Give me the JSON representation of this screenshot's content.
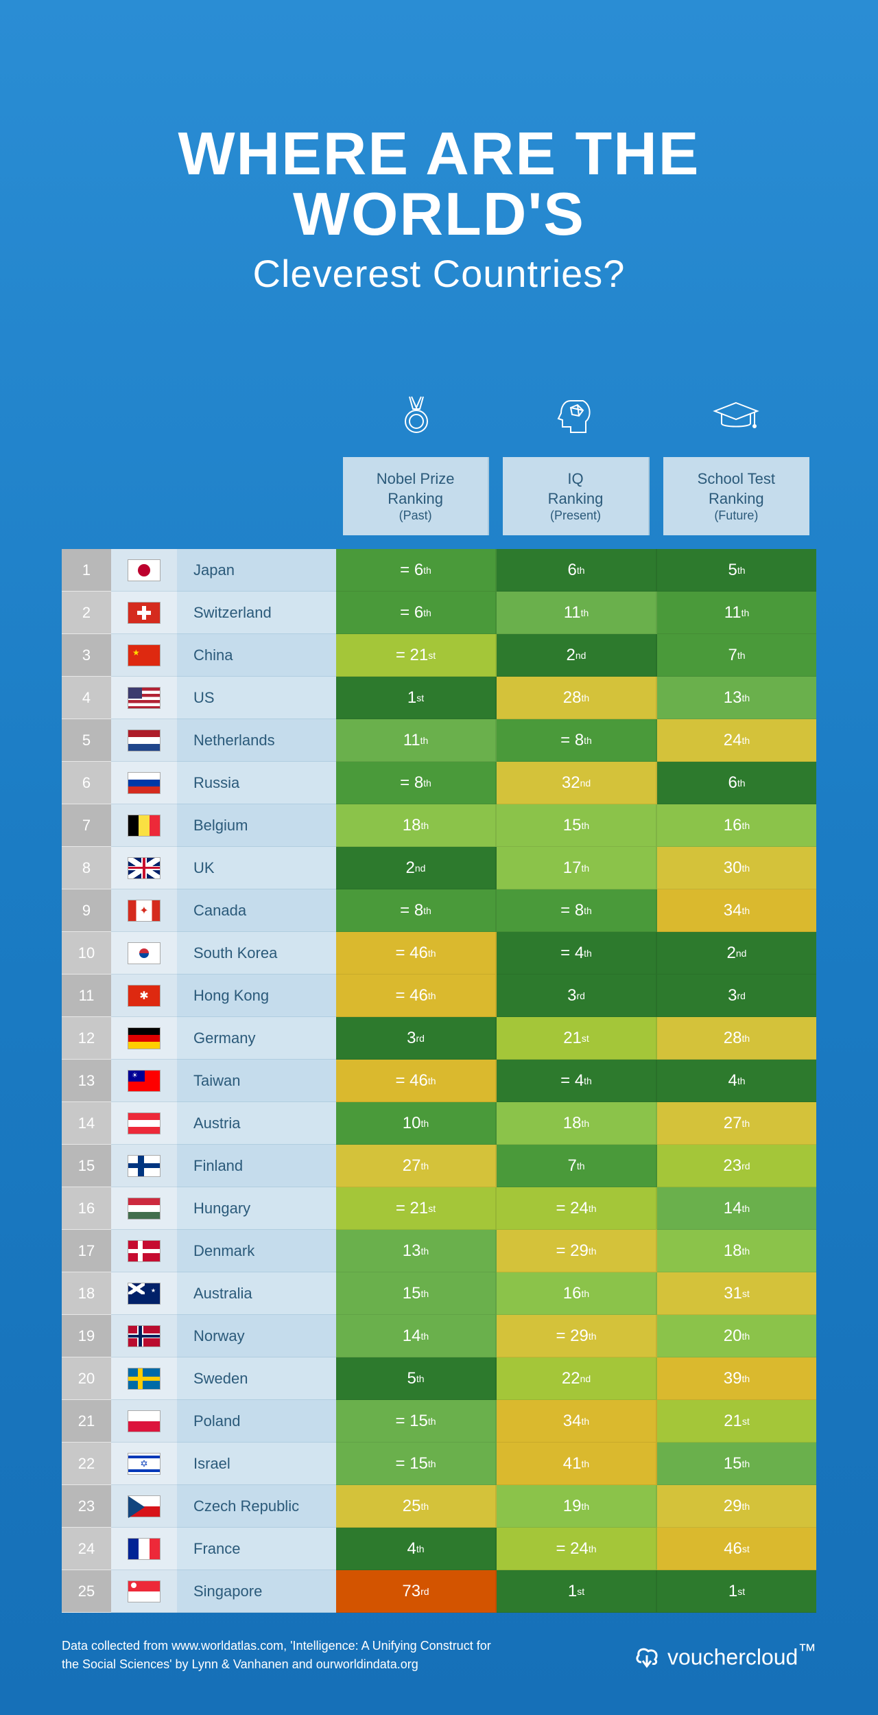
{
  "title_line1": "WHERE ARE THE WORLD'S",
  "title_line2": "Cleverest Countries?",
  "columns": [
    {
      "label": "Nobel Prize\nRanking",
      "sub": "(Past)",
      "icon": "medal"
    },
    {
      "label": "IQ\nRanking",
      "sub": "(Present)",
      "icon": "head"
    },
    {
      "label": "School Test\nRanking",
      "sub": "(Future)",
      "icon": "grad-cap"
    }
  ],
  "color_scale": {
    "dark_green": "#2d7a2d",
    "green": "#4a9a3a",
    "mid_green": "#6ab04c",
    "lime": "#8bc34a",
    "yellow_green": "#a4c639",
    "yellow": "#d4c23a",
    "mustard": "#dab92e",
    "orange": "#e67e22",
    "red_orange": "#d35400"
  },
  "rows": [
    {
      "rank": 1,
      "country": "Japan",
      "flag": "JP",
      "cells": [
        {
          "text": "= 6",
          "sup": "th",
          "bg": "#4a9a3a"
        },
        {
          "text": "6",
          "sup": "th",
          "bg": "#2d7a2d"
        },
        {
          "text": "5",
          "sup": "th",
          "bg": "#2d7a2d"
        }
      ]
    },
    {
      "rank": 2,
      "country": "Switzerland",
      "flag": "CH",
      "cells": [
        {
          "text": "= 6",
          "sup": "th",
          "bg": "#4a9a3a"
        },
        {
          "text": "11",
          "sup": "th",
          "bg": "#6ab04c"
        },
        {
          "text": "11",
          "sup": "th",
          "bg": "#4a9a3a"
        }
      ]
    },
    {
      "rank": 3,
      "country": "China",
      "flag": "CN",
      "cells": [
        {
          "text": "= 21",
          "sup": "st",
          "bg": "#a4c639"
        },
        {
          "text": "2",
          "sup": "nd",
          "bg": "#2d7a2d"
        },
        {
          "text": "7",
          "sup": "th",
          "bg": "#4a9a3a"
        }
      ]
    },
    {
      "rank": 4,
      "country": "US",
      "flag": "US",
      "cells": [
        {
          "text": "1",
          "sup": "st",
          "bg": "#2d7a2d"
        },
        {
          "text": "28",
          "sup": "th",
          "bg": "#d4c23a"
        },
        {
          "text": "13",
          "sup": "th",
          "bg": "#6ab04c"
        }
      ]
    },
    {
      "rank": 5,
      "country": "Netherlands",
      "flag": "NL",
      "cells": [
        {
          "text": "11",
          "sup": "th",
          "bg": "#6ab04c"
        },
        {
          "text": "= 8",
          "sup": "th",
          "bg": "#4a9a3a"
        },
        {
          "text": "24",
          "sup": "th",
          "bg": "#d4c23a"
        }
      ]
    },
    {
      "rank": 6,
      "country": "Russia",
      "flag": "RU",
      "cells": [
        {
          "text": "= 8",
          "sup": "th",
          "bg": "#4a9a3a"
        },
        {
          "text": "32",
          "sup": "nd",
          "bg": "#d4c23a"
        },
        {
          "text": "6",
          "sup": "th",
          "bg": "#2d7a2d"
        }
      ]
    },
    {
      "rank": 7,
      "country": "Belgium",
      "flag": "BE",
      "cells": [
        {
          "text": "18",
          "sup": "th",
          "bg": "#8bc34a"
        },
        {
          "text": "15",
          "sup": "th",
          "bg": "#8bc34a"
        },
        {
          "text": "16",
          "sup": "th",
          "bg": "#8bc34a"
        }
      ]
    },
    {
      "rank": 8,
      "country": "UK",
      "flag": "GB",
      "cells": [
        {
          "text": "2",
          "sup": "nd",
          "bg": "#2d7a2d"
        },
        {
          "text": "17",
          "sup": "th",
          "bg": "#8bc34a"
        },
        {
          "text": "30",
          "sup": "th",
          "bg": "#d4c23a"
        }
      ]
    },
    {
      "rank": 9,
      "country": "Canada",
      "flag": "CA",
      "cells": [
        {
          "text": "= 8",
          "sup": "th",
          "bg": "#4a9a3a"
        },
        {
          "text": "= 8",
          "sup": "th",
          "bg": "#4a9a3a"
        },
        {
          "text": "34",
          "sup": "th",
          "bg": "#dab92e"
        }
      ]
    },
    {
      "rank": 10,
      "country": "South Korea",
      "flag": "KR",
      "cells": [
        {
          "text": "= 46",
          "sup": "th",
          "bg": "#dab92e"
        },
        {
          "text": "= 4",
          "sup": "th",
          "bg": "#2d7a2d"
        },
        {
          "text": "2",
          "sup": "nd",
          "bg": "#2d7a2d"
        }
      ]
    },
    {
      "rank": 11,
      "country": "Hong Kong",
      "flag": "HK",
      "cells": [
        {
          "text": "= 46",
          "sup": "th",
          "bg": "#dab92e"
        },
        {
          "text": "3",
          "sup": "rd",
          "bg": "#2d7a2d"
        },
        {
          "text": "3",
          "sup": "rd",
          "bg": "#2d7a2d"
        }
      ]
    },
    {
      "rank": 12,
      "country": "Germany",
      "flag": "DE",
      "cells": [
        {
          "text": "3",
          "sup": "rd",
          "bg": "#2d7a2d"
        },
        {
          "text": "21",
          "sup": "st",
          "bg": "#a4c639"
        },
        {
          "text": "28",
          "sup": "th",
          "bg": "#d4c23a"
        }
      ]
    },
    {
      "rank": 13,
      "country": "Taiwan",
      "flag": "TW",
      "cells": [
        {
          "text": "= 46",
          "sup": "th",
          "bg": "#dab92e"
        },
        {
          "text": "= 4",
          "sup": "th",
          "bg": "#2d7a2d"
        },
        {
          "text": "4",
          "sup": "th",
          "bg": "#2d7a2d"
        }
      ]
    },
    {
      "rank": 14,
      "country": "Austria",
      "flag": "AT",
      "cells": [
        {
          "text": "10",
          "sup": "th",
          "bg": "#4a9a3a"
        },
        {
          "text": "18",
          "sup": "th",
          "bg": "#8bc34a"
        },
        {
          "text": "27",
          "sup": "th",
          "bg": "#d4c23a"
        }
      ]
    },
    {
      "rank": 15,
      "country": "Finland",
      "flag": "FI",
      "cells": [
        {
          "text": "27",
          "sup": "th",
          "bg": "#d4c23a"
        },
        {
          "text": "7",
          "sup": "th",
          "bg": "#4a9a3a"
        },
        {
          "text": "23",
          "sup": "rd",
          "bg": "#a4c639"
        }
      ]
    },
    {
      "rank": 16,
      "country": "Hungary",
      "flag": "HU",
      "cells": [
        {
          "text": "= 21",
          "sup": "st",
          "bg": "#a4c639"
        },
        {
          "text": "= 24",
          "sup": "th",
          "bg": "#a4c639"
        },
        {
          "text": "14",
          "sup": "th",
          "bg": "#6ab04c"
        }
      ]
    },
    {
      "rank": 17,
      "country": "Denmark",
      "flag": "DK",
      "cells": [
        {
          "text": "13",
          "sup": "th",
          "bg": "#6ab04c"
        },
        {
          "text": "= 29",
          "sup": "th",
          "bg": "#d4c23a"
        },
        {
          "text": "18",
          "sup": "th",
          "bg": "#8bc34a"
        }
      ]
    },
    {
      "rank": 18,
      "country": "Australia",
      "flag": "AU",
      "cells": [
        {
          "text": "15",
          "sup": "th",
          "bg": "#6ab04c"
        },
        {
          "text": "16",
          "sup": "th",
          "bg": "#8bc34a"
        },
        {
          "text": "31",
          "sup": "st",
          "bg": "#d4c23a"
        }
      ]
    },
    {
      "rank": 19,
      "country": "Norway",
      "flag": "NO",
      "cells": [
        {
          "text": "14",
          "sup": "th",
          "bg": "#6ab04c"
        },
        {
          "text": "= 29",
          "sup": "th",
          "bg": "#d4c23a"
        },
        {
          "text": "20",
          "sup": "th",
          "bg": "#8bc34a"
        }
      ]
    },
    {
      "rank": 20,
      "country": "Sweden",
      "flag": "SE",
      "cells": [
        {
          "text": "5",
          "sup": "th",
          "bg": "#2d7a2d"
        },
        {
          "text": "22",
          "sup": "nd",
          "bg": "#a4c639"
        },
        {
          "text": "39",
          "sup": "th",
          "bg": "#dab92e"
        }
      ]
    },
    {
      "rank": 21,
      "country": "Poland",
      "flag": "PL",
      "cells": [
        {
          "text": "= 15",
          "sup": "th",
          "bg": "#6ab04c"
        },
        {
          "text": "34",
          "sup": "th",
          "bg": "#dab92e"
        },
        {
          "text": "21",
          "sup": "st",
          "bg": "#a4c639"
        }
      ]
    },
    {
      "rank": 22,
      "country": "Israel",
      "flag": "IL",
      "cells": [
        {
          "text": "= 15",
          "sup": "th",
          "bg": "#6ab04c"
        },
        {
          "text": "41",
          "sup": "th",
          "bg": "#dab92e"
        },
        {
          "text": "15",
          "sup": "th",
          "bg": "#6ab04c"
        }
      ]
    },
    {
      "rank": 23,
      "country": "Czech Republic",
      "flag": "CZ",
      "cells": [
        {
          "text": "25",
          "sup": "th",
          "bg": "#d4c23a"
        },
        {
          "text": "19",
          "sup": "th",
          "bg": "#8bc34a"
        },
        {
          "text": "29",
          "sup": "th",
          "bg": "#d4c23a"
        }
      ]
    },
    {
      "rank": 24,
      "country": "France",
      "flag": "FR",
      "cells": [
        {
          "text": "4",
          "sup": "th",
          "bg": "#2d7a2d"
        },
        {
          "text": "= 24",
          "sup": "th",
          "bg": "#a4c639"
        },
        {
          "text": "46",
          "sup": "st",
          "bg": "#dab92e"
        }
      ]
    },
    {
      "rank": 25,
      "country": "Singapore",
      "flag": "SG",
      "cells": [
        {
          "text": "73",
          "sup": "rd",
          "bg": "#d35400"
        },
        {
          "text": "1",
          "sup": "st",
          "bg": "#2d7a2d"
        },
        {
          "text": "1",
          "sup": "st",
          "bg": "#2d7a2d"
        }
      ]
    }
  ],
  "flags": {
    "JP": {
      "bg": "#fff",
      "html": "<div style='width:18px;height:18px;background:#bc002d;border-radius:50%;margin:auto'></div>"
    },
    "CH": {
      "bg": "#d52b1e",
      "html": "<div style='position:absolute;left:50%;top:50%;transform:translate(-50%,-50%);width:6px;height:20px;background:#fff'></div><div style='position:absolute;left:50%;top:50%;transform:translate(-50%,-50%);width:20px;height:6px;background:#fff'></div>"
    },
    "CN": {
      "bg": "#de2910",
      "html": "<div style='position:absolute;left:6px;top:4px;color:#ffde00;font-size:12px'>★</div>"
    },
    "US": {
      "bg": "linear-gradient(#b22234 0 15%,#fff 15% 30%,#b22234 30% 45%,#fff 45% 60%,#b22234 60% 75%,#fff 75% 90%,#b22234 90%)",
      "html": "<div style='position:absolute;left:0;top:0;width:20px;height:16px;background:#3c3b6e'></div>"
    },
    "NL": {
      "bg": "linear-gradient(#ae1c28 0 33%,#fff 33% 67%,#21468b 67%)",
      "html": ""
    },
    "RU": {
      "bg": "linear-gradient(#fff 0 33%,#0039a6 33% 67%,#d52b1e 67%)",
      "html": ""
    },
    "BE": {
      "bg": "linear-gradient(90deg,#000 0 33%,#fae042 33% 67%,#ed2939 67%)",
      "html": ""
    },
    "GB": {
      "bg": "#012169",
      "html": "<div style='position:absolute;inset:0;background:linear-gradient(to bottom right,transparent 42%,#fff 42% 58%,transparent 58%),linear-gradient(to bottom left,transparent 42%,#fff 42% 58%,transparent 58%)'></div><div style='position:absolute;left:0;right:0;top:40%;height:20%;background:#fff'></div><div style='position:absolute;top:0;bottom:0;left:42%;width:16%;background:#fff'></div><div style='position:absolute;left:0;right:0;top:44%;height:12%;background:#c8102e'></div><div style='position:absolute;top:0;bottom:0;left:46%;width:8%;background:#c8102e'></div>"
    },
    "CA": {
      "bg": "linear-gradient(90deg,#d52b1e 0 25%,#fff 25% 75%,#d52b1e 75%)",
      "html": "<div style='position:absolute;left:50%;top:50%;transform:translate(-50%,-50%);color:#d52b1e;font-size:16px'>✦</div>"
    },
    "KR": {
      "bg": "#fff",
      "html": "<div style='width:14px;height:14px;border-radius:50%;margin:auto;background:linear-gradient(#cd2e3a 50%,#0047a0 50%)'></div>"
    },
    "HK": {
      "bg": "#de2910",
      "html": "<div style='position:absolute;left:50%;top:50%;transform:translate(-50%,-50%);color:#fff;font-size:16px'>✱</div>"
    },
    "DE": {
      "bg": "linear-gradient(#000 0 33%,#dd0000 33% 67%,#ffce00 67%)",
      "html": ""
    },
    "TW": {
      "bg": "#fe0000",
      "html": "<div style='position:absolute;left:0;top:0;width:24px;height:16px;background:#000095'></div><div style='position:absolute;left:5px;top:2px;color:#fff;font-size:10px'>☀</div>"
    },
    "AT": {
      "bg": "linear-gradient(#ed2939 0 33%,#fff 33% 67%,#ed2939 67%)",
      "html": ""
    },
    "FI": {
      "bg": "#fff",
      "html": "<div style='position:absolute;left:30%;top:0;bottom:0;width:20%;background:#003580'></div><div style='position:absolute;left:0;right:0;top:38%;height:24%;background:#003580'></div>"
    },
    "HU": {
      "bg": "linear-gradient(#cd2a3e 0 33%,#fff 33% 67%,#436f4d 67%)",
      "html": ""
    },
    "DK": {
      "bg": "#c60c30",
      "html": "<div style='position:absolute;left:30%;top:0;bottom:0;width:16%;background:#fff'></div><div style='position:absolute;left:0;right:0;top:40%;height:20%;background:#fff'></div>"
    },
    "AU": {
      "bg": "#012169",
      "html": "<div style='position:absolute;left:0;top:0;width:24px;height:16px;background:linear-gradient(to bottom right,transparent 40%,#fff 40% 60%,transparent 60%),linear-gradient(to bottom left,transparent 40%,#fff 40% 60%,transparent 60%)'></div><div style='position:absolute;right:6px;top:6px;color:#fff;font-size:8px'>★</div>"
    },
    "NO": {
      "bg": "#ba0c2f",
      "html": "<div style='position:absolute;left:28%;top:0;bottom:0;width:20%;background:#fff'></div><div style='position:absolute;left:0;right:0;top:38%;height:24%;background:#fff'></div><div style='position:absolute;left:32%;top:0;bottom:0;width:12%;background:#00205b'></div><div style='position:absolute;left:0;right:0;top:43%;height:14%;background:#00205b'></div>"
    },
    "SE": {
      "bg": "#006aa7",
      "html": "<div style='position:absolute;left:30%;top:0;bottom:0;width:16%;background:#fecc00'></div><div style='position:absolute;left:0;right:0;top:40%;height:20%;background:#fecc00'></div>"
    },
    "PL": {
      "bg": "linear-gradient(#fff 0 50%,#dc143c 50%)",
      "html": ""
    },
    "IL": {
      "bg": "#fff",
      "html": "<div style='position:absolute;left:0;right:0;top:10%;height:14%;background:#0038b8'></div><div style='position:absolute;left:0;right:0;bottom:10%;height:14%;background:#0038b8'></div><div style='position:absolute;left:50%;top:50%;transform:translate(-50%,-50%);color:#0038b8;font-size:14px'>✡</div>"
    },
    "CZ": {
      "bg": "linear-gradient(#fff 0 50%,#d7141a 50%)",
      "html": "<div style='position:absolute;left:0;top:0;width:0;height:0;border-top:16px solid transparent;border-bottom:16px solid transparent;border-left:24px solid #11457e'></div>"
    },
    "FR": {
      "bg": "linear-gradient(90deg,#002395 0 33%,#fff 33% 67%,#ed2939 67%)",
      "html": ""
    },
    "SG": {
      "bg": "linear-gradient(#ed2939 0 50%,#fff 50%)",
      "html": "<div style='position:absolute;left:4px;top:2px;width:8px;height:8px;border-radius:50%;background:#fff'></div>"
    }
  },
  "footer_text": "Data collected from www.worldatlas.com, 'Intelligence: A Unifying Construct for the Social Sciences' by Lynn & Vanhanen and ourworldindata.org",
  "footer_brand": "vouchercloud",
  "footer_tm": "™"
}
